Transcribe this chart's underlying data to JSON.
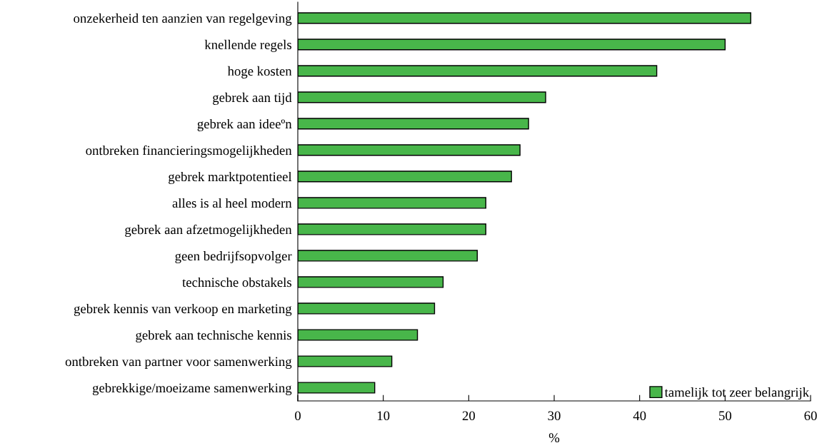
{
  "chart_data": {
    "type": "bar",
    "orientation": "horizontal",
    "xlabel": "%",
    "categories": [
      "onzekerheid ten aanzien van regelgeving",
      "knellende regels",
      "hoge kosten",
      "gebrek aan tijd",
      "gebrek aan ideeºn",
      "ontbreken financieringsmogelijkheden",
      "gebrek marktpotentieel",
      "alles is al heel modern",
      "gebrek aan afzetmogelijkheden",
      "geen bedrijfsopvolger",
      "technische obstakels",
      "gebrek kennis van verkoop en marketing",
      "gebrek aan technische kennis",
      "ontbreken van partner voor samenwerking",
      "gebrekkige/moeizame samenwerking"
    ],
    "series": [
      {
        "name": "tamelijk tot zeer belangrijk",
        "color": "#48b64a",
        "values": [
          53,
          50,
          42,
          29,
          27,
          26,
          25,
          22,
          22,
          21,
          17,
          16,
          14,
          11,
          9
        ]
      }
    ],
    "xlim": [
      0,
      60
    ],
    "xticks": [
      0,
      10,
      20,
      30,
      40,
      50,
      60
    ],
    "grid": false,
    "legend": "bottom right"
  }
}
